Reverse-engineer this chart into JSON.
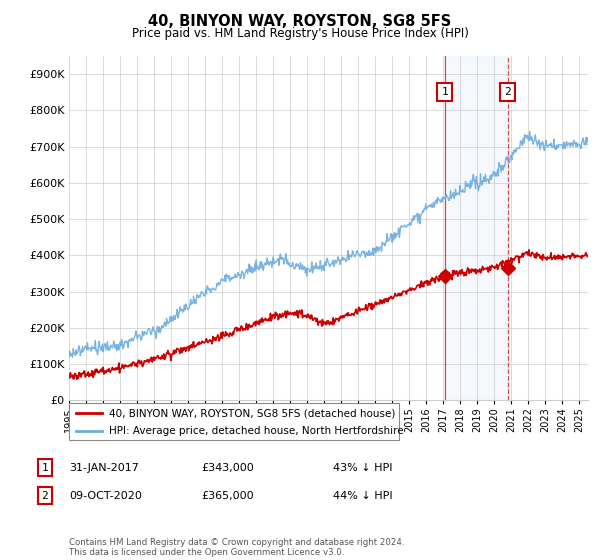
{
  "title": "40, BINYON WAY, ROYSTON, SG8 5FS",
  "subtitle": "Price paid vs. HM Land Registry's House Price Index (HPI)",
  "ytick_values": [
    0,
    100000,
    200000,
    300000,
    400000,
    500000,
    600000,
    700000,
    800000,
    900000
  ],
  "ylim": [
    0,
    950000
  ],
  "hpi_color": "#6aabe0",
  "hpi_shade_color": "#d8eaf8",
  "sale_color": "#cc0000",
  "annotation_box_color": "#cc0000",
  "vline1_color": "#cc0000",
  "vline1_style": "solid",
  "vline2_color": "#cc0000",
  "vline2_style": "dashed",
  "legend_line1": "40, BINYON WAY, ROYSTON, SG8 5FS (detached house)",
  "legend_line2": "HPI: Average price, detached house, North Hertfordshire",
  "point1_date": "31-JAN-2017",
  "point1_price": "£343,000",
  "point1_pct": "43% ↓ HPI",
  "point1_x": 2017.08,
  "point1_y": 343000,
  "point2_date": "09-OCT-2020",
  "point2_price": "£365,000",
  "point2_pct": "44% ↓ HPI",
  "point2_x": 2020.78,
  "point2_y": 365000,
  "footer": "Contains HM Land Registry data © Crown copyright and database right 2024.\nThis data is licensed under the Open Government Licence v3.0.",
  "xmin": 1995.0,
  "xmax": 2025.5
}
